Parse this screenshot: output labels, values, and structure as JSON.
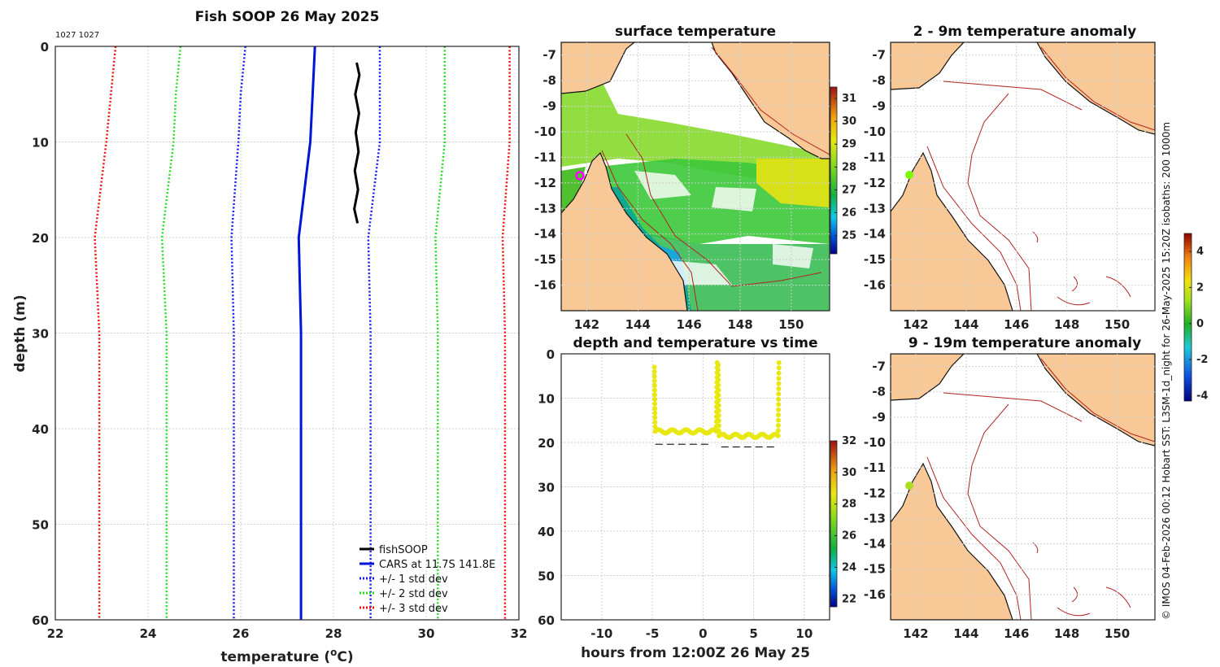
{
  "colors": {
    "obs": "#000000",
    "cars": "#0015d6",
    "sd1": "#1a1aee",
    "sd2": "#22dd22",
    "sd3": "#ee1111",
    "land": "#f8c896",
    "isobath": "#b22222",
    "sst_marker": "#ff00ff",
    "anom_marker": "#7cfc00"
  },
  "side_text": "© IMOS 04-Feb-2026 00:12 Hobart SST: L3SM-1d_night for 26-May-2025 15:20Z isobaths: 200  1000m",
  "chart_data": [
    {
      "id": "profile",
      "type": "line",
      "title": "Fish SOOP 26 May 2025",
      "subtitle": "1027 1027",
      "xlabel": "temperature (°C)",
      "ylabel": "depth (m)",
      "xlim": [
        22,
        32
      ],
      "ylim": [
        0,
        60
      ],
      "xticks": [
        "22",
        "24",
        "26",
        "28",
        "30",
        "32"
      ],
      "yticks": [
        "0",
        "10",
        "20",
        "30",
        "40",
        "50",
        "60"
      ],
      "legend_position": "bottom-right",
      "series": [
        {
          "name": "fishSOOP",
          "style": "solid",
          "color": "obs",
          "points": [
            [
              28.5,
              1.7
            ],
            [
              28.56,
              3
            ],
            [
              28.47,
              5
            ],
            [
              28.55,
              7
            ],
            [
              28.48,
              9
            ],
            [
              28.54,
              11
            ],
            [
              28.46,
              13
            ],
            [
              28.53,
              15
            ],
            [
              28.45,
              17
            ],
            [
              28.52,
              18.5
            ]
          ]
        },
        {
          "name": "CARS at 11.7S 141.8E",
          "style": "solid",
          "color": "cars",
          "points": [
            [
              27.6,
              0
            ],
            [
              27.55,
              5
            ],
            [
              27.5,
              10
            ],
            [
              27.25,
              20
            ],
            [
              27.3,
              30
            ],
            [
              27.3,
              60
            ]
          ]
        },
        {
          "name": "+/- 1 std dev",
          "style": "dotted",
          "color": "sd1",
          "low": [
            [
              26.1,
              0
            ],
            [
              26.0,
              5
            ],
            [
              25.95,
              10
            ],
            [
              25.8,
              20
            ],
            [
              25.85,
              30
            ],
            [
              25.85,
              60
            ]
          ],
          "high": [
            [
              29.0,
              0
            ],
            [
              29.0,
              5
            ],
            [
              29.0,
              10
            ],
            [
              28.75,
              20
            ],
            [
              28.8,
              30
            ],
            [
              28.8,
              60
            ]
          ]
        },
        {
          "name": "+/- 2 std dev",
          "style": "dotted",
          "color": "sd2",
          "low": [
            [
              24.7,
              0
            ],
            [
              24.6,
              5
            ],
            [
              24.55,
              10
            ],
            [
              24.3,
              20
            ],
            [
              24.4,
              30
            ],
            [
              24.4,
              60
            ]
          ],
          "high": [
            [
              30.4,
              0
            ],
            [
              30.4,
              5
            ],
            [
              30.4,
              10
            ],
            [
              30.2,
              20
            ],
            [
              30.25,
              30
            ],
            [
              30.25,
              60
            ]
          ]
        },
        {
          "name": "+/- 3 std dev",
          "style": "dotted",
          "color": "sd3",
          "low": [
            [
              23.3,
              0
            ],
            [
              23.2,
              5
            ],
            [
              23.1,
              10
            ],
            [
              22.85,
              20
            ],
            [
              22.95,
              30
            ],
            [
              22.95,
              60
            ]
          ],
          "high": [
            [
              31.8,
              0
            ],
            [
              31.8,
              5
            ],
            [
              31.8,
              10
            ],
            [
              31.65,
              20
            ],
            [
              31.7,
              30
            ],
            [
              31.7,
              60
            ]
          ]
        }
      ]
    },
    {
      "id": "surface",
      "type": "heatmap",
      "title": "surface temperature",
      "xlim": [
        141,
        151.5
      ],
      "ylim": [
        -17,
        -6.5
      ],
      "xticks": [
        "142",
        "144",
        "146",
        "148",
        "150"
      ],
      "yticks": [
        "-7",
        "-8",
        "-9",
        "-10",
        "-11",
        "-12",
        "-13",
        "-14",
        "-15",
        "-16"
      ],
      "colorbar": {
        "min": 24.2,
        "max": 31.5,
        "ticks": [
          "25",
          "26",
          "27",
          "28",
          "29",
          "30",
          "31"
        ]
      },
      "marker": {
        "lon": 141.7,
        "lat": -11.6
      }
    },
    {
      "id": "anom1",
      "type": "heatmap",
      "title": "2 - 9m temperature anomaly",
      "xlim": [
        141,
        151.5
      ],
      "ylim": [
        -17,
        -6.5
      ],
      "xticks": [
        "142",
        "144",
        "146",
        "148",
        "150"
      ],
      "yticks": [
        "-7",
        "-8",
        "-9",
        "-10",
        "-11",
        "-12",
        "-13",
        "-14",
        "-15",
        "-16"
      ],
      "marker": {
        "lon": 141.7,
        "lat": -11.7
      }
    },
    {
      "id": "anom2",
      "type": "heatmap",
      "title": "9 - 19m temperature anomaly",
      "xlim": [
        141,
        151.5
      ],
      "ylim": [
        -17,
        -6.5
      ],
      "xticks": [
        "142",
        "144",
        "146",
        "148",
        "150"
      ],
      "yticks": [
        "-7",
        "-8",
        "-9",
        "-10",
        "-11",
        "-12",
        "-13",
        "-14",
        "-15",
        "-16"
      ],
      "marker": {
        "lon": 141.7,
        "lat": -11.7
      }
    },
    {
      "id": "anom_colorbar",
      "type": "heatmap",
      "colorbar": {
        "min": -4.3,
        "max": 5,
        "ticks": [
          "4",
          "2",
          "0",
          "-2",
          "-4"
        ]
      }
    },
    {
      "id": "timeseries",
      "type": "scatter",
      "title": "depth and temperature vs time",
      "xlabel": "hours from 12:00Z 26 May 25",
      "xlim": [
        -14,
        12.5
      ],
      "ylim": [
        0,
        60
      ],
      "xticks": [
        "-10",
        "-5",
        "0",
        "5",
        "10"
      ],
      "yticks": [
        "0",
        "10",
        "20",
        "30",
        "40",
        "50",
        "60"
      ],
      "colorbar": {
        "min": 21.5,
        "max": 32,
        "ticks": [
          "32",
          "30",
          "28",
          "26",
          "24",
          "22"
        ]
      },
      "bottom_depth": [
        [
          -4.7,
          20.4
        ],
        [
          0.9,
          20.4
        ],
        [
          1.8,
          21
        ],
        [
          7.4,
          21
        ]
      ],
      "casts": [
        {
          "t_start": -4.8,
          "t_end": 1.4,
          "bottom": 17.5,
          "temp": 28.5
        },
        {
          "t_start": 1.5,
          "t_end": 7.5,
          "bottom": 18.5,
          "temp": 28.5
        }
      ],
      "peaks": [
        [
          -4.8,
          3
        ],
        [
          1.4,
          2
        ],
        [
          1.7,
          2.5
        ],
        [
          7.5,
          2
        ]
      ]
    }
  ]
}
